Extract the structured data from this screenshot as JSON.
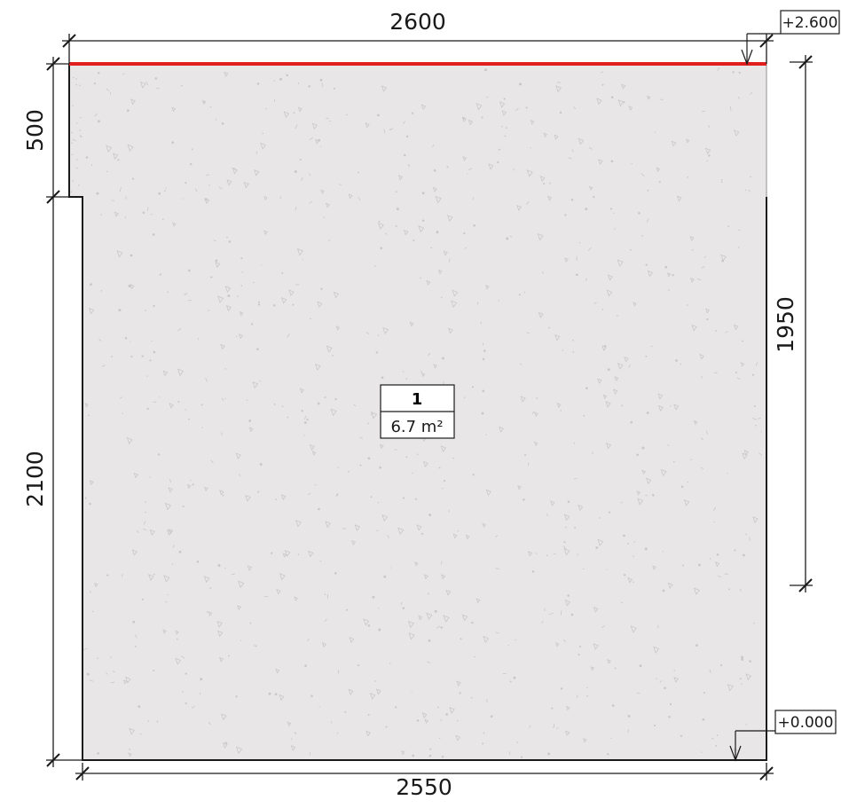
{
  "dimensions": {
    "top_width": "2600",
    "bottom_width": "2550",
    "left_upper_height": "500",
    "left_lower_height": "2100",
    "right_height": "1950"
  },
  "levels": {
    "top": "+2.600",
    "bottom": "+0.000"
  },
  "room": {
    "number": "1",
    "area": "6.7 m²"
  },
  "colors": {
    "fill": "#e8e6e6",
    "outline": "#1a1a1a",
    "highlight_edge": "#e02020",
    "speckle": "#c9c7c7"
  }
}
